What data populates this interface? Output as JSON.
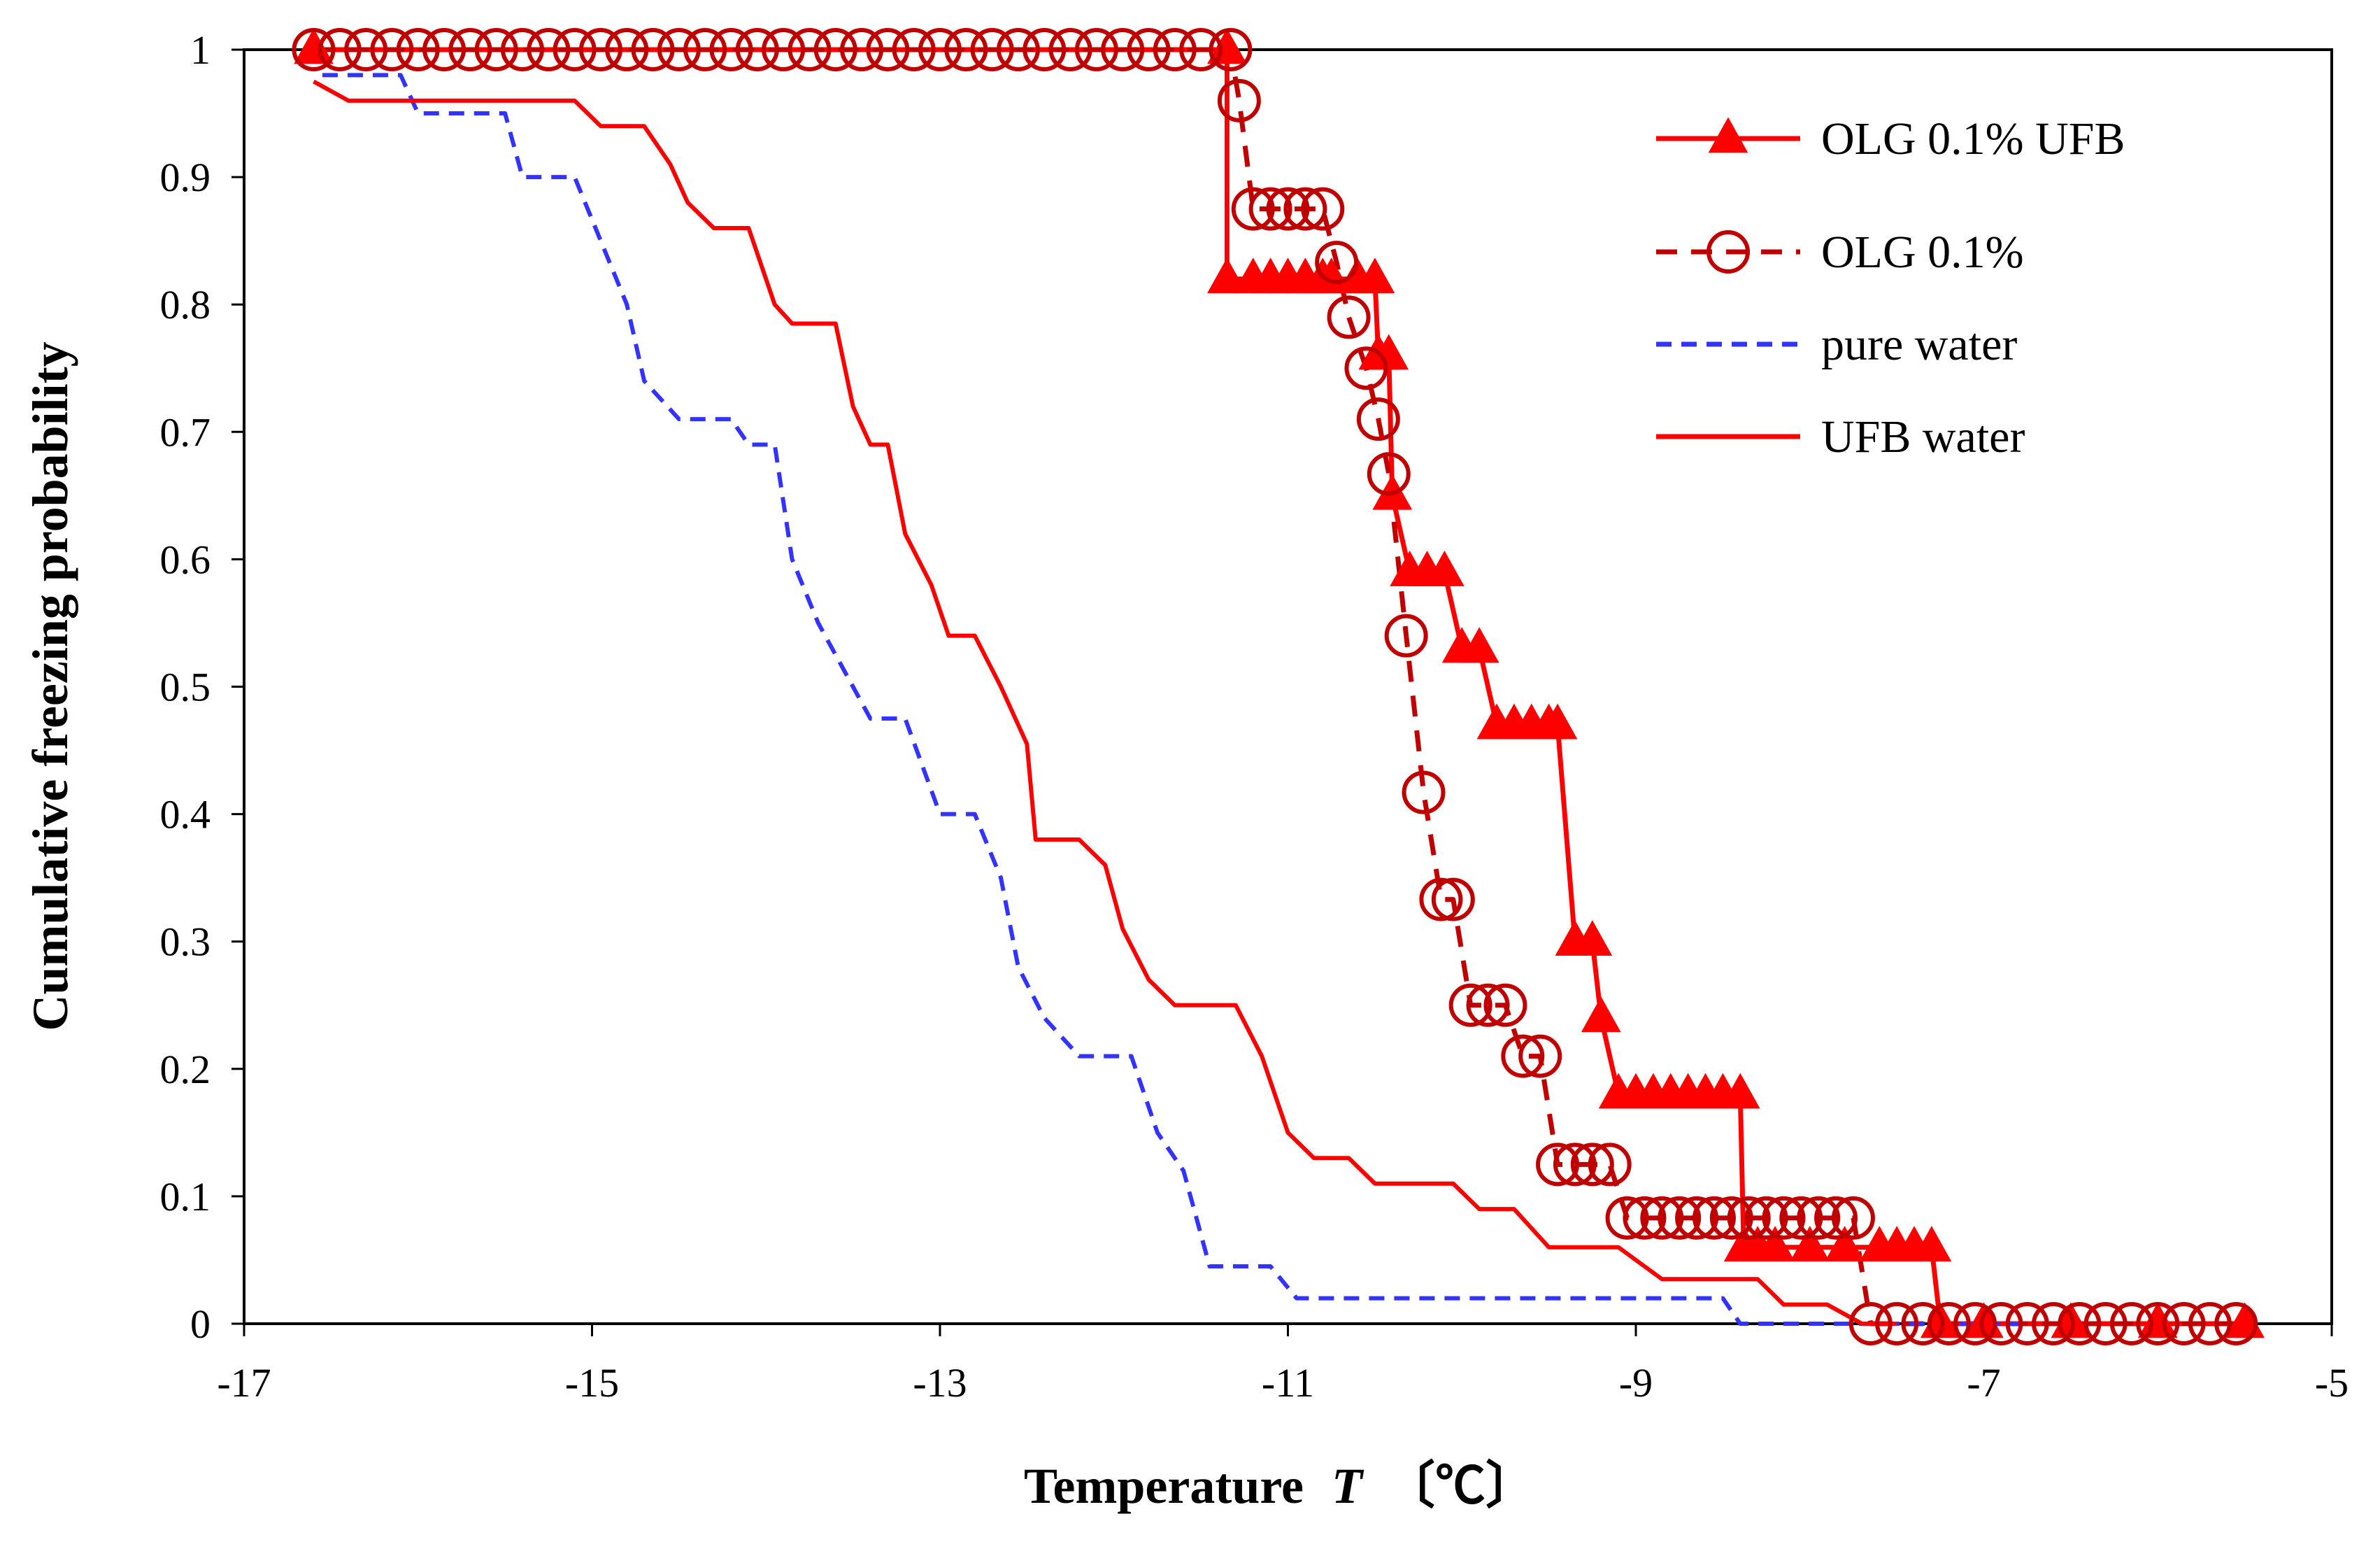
{
  "chart_data": {
    "type": "line",
    "title": "",
    "xlabel_main": "Temperature",
    "xlabel_symbol": "T",
    "xlabel_unit": "〔℃〕",
    "ylabel": "Cumulative freezing probability",
    "xlim": [
      -17,
      -5
    ],
    "ylim": [
      0,
      1
    ],
    "xticks": [
      -17,
      -15,
      -13,
      -11,
      -9,
      -7,
      -5
    ],
    "yticks": [
      0,
      0.1,
      0.2,
      0.3,
      0.4,
      0.5,
      0.6,
      0.7,
      0.8,
      0.9,
      1
    ],
    "xtick_labels": [
      "-17",
      "-15",
      "-13",
      "-11",
      "-9",
      "-7",
      "-5"
    ],
    "ytick_labels": [
      "0",
      "0.1",
      "0.2",
      "0.3",
      "0.4",
      "0.5",
      "0.6",
      "0.7",
      "0.8",
      "0.9",
      "1"
    ],
    "legend_position": "top-right",
    "series": [
      {
        "name": "OLG 0.1% UFB",
        "color": "#ff0000",
        "line": "solid",
        "marker": "triangle",
        "points": [
          [
            -16.6,
            1
          ],
          [
            -11.35,
            1
          ],
          [
            -11.35,
            0.82
          ],
          [
            -11.2,
            0.82
          ],
          [
            -11.1,
            0.82
          ],
          [
            -11.0,
            0.82
          ],
          [
            -10.9,
            0.82
          ],
          [
            -10.8,
            0.82
          ],
          [
            -10.75,
            0.82
          ],
          [
            -10.6,
            0.82
          ],
          [
            -10.5,
            0.82
          ],
          [
            -10.48,
            0.76
          ],
          [
            -10.42,
            0.76
          ],
          [
            -10.4,
            0.65
          ],
          [
            -10.3,
            0.59
          ],
          [
            -10.2,
            0.59
          ],
          [
            -10.1,
            0.59
          ],
          [
            -10.0,
            0.53
          ],
          [
            -9.9,
            0.53
          ],
          [
            -9.8,
            0.47
          ],
          [
            -9.7,
            0.47
          ],
          [
            -9.6,
            0.47
          ],
          [
            -9.5,
            0.47
          ],
          [
            -9.45,
            0.47
          ],
          [
            -9.35,
            0.3
          ],
          [
            -9.25,
            0.3
          ],
          [
            -9.2,
            0.24
          ],
          [
            -9.1,
            0.18
          ],
          [
            -9.0,
            0.18
          ],
          [
            -8.9,
            0.18
          ],
          [
            -8.8,
            0.18
          ],
          [
            -8.7,
            0.18
          ],
          [
            -8.6,
            0.18
          ],
          [
            -8.5,
            0.18
          ],
          [
            -8.4,
            0.18
          ],
          [
            -8.38,
            0.06
          ],
          [
            -8.3,
            0.06
          ],
          [
            -8.2,
            0.06
          ],
          [
            -8.0,
            0.06
          ],
          [
            -7.8,
            0.06
          ],
          [
            -7.6,
            0.06
          ],
          [
            -7.5,
            0.06
          ],
          [
            -7.4,
            0.06
          ],
          [
            -7.3,
            0.06
          ],
          [
            -7.25,
            0.0
          ],
          [
            -7.0,
            0.0
          ],
          [
            -6.5,
            0.0
          ],
          [
            -6.0,
            0.0
          ],
          [
            -5.5,
            0.0
          ]
        ]
      },
      {
        "name": "OLG 0.1%",
        "color": "#c00000",
        "line": "dashed",
        "marker": "circle",
        "points": [
          [
            -16.6,
            1
          ],
          [
            -16.45,
            1
          ],
          [
            -16.3,
            1
          ],
          [
            -16.15,
            1
          ],
          [
            -16.0,
            1
          ],
          [
            -15.85,
            1
          ],
          [
            -15.7,
            1
          ],
          [
            -15.55,
            1
          ],
          [
            -15.4,
            1
          ],
          [
            -15.25,
            1
          ],
          [
            -15.1,
            1
          ],
          [
            -14.95,
            1
          ],
          [
            -14.8,
            1
          ],
          [
            -14.65,
            1
          ],
          [
            -14.5,
            1
          ],
          [
            -14.35,
            1
          ],
          [
            -14.2,
            1
          ],
          [
            -14.05,
            1
          ],
          [
            -13.9,
            1
          ],
          [
            -13.75,
            1
          ],
          [
            -13.6,
            1
          ],
          [
            -13.45,
            1
          ],
          [
            -13.3,
            1
          ],
          [
            -13.15,
            1
          ],
          [
            -13.0,
            1
          ],
          [
            -12.85,
            1
          ],
          [
            -12.7,
            1
          ],
          [
            -12.55,
            1
          ],
          [
            -12.4,
            1
          ],
          [
            -12.25,
            1
          ],
          [
            -12.1,
            1
          ],
          [
            -11.95,
            1
          ],
          [
            -11.8,
            1
          ],
          [
            -11.65,
            1
          ],
          [
            -11.5,
            1
          ],
          [
            -11.33,
            1
          ],
          [
            -11.28,
            0.96
          ],
          [
            -11.2,
            0.875
          ],
          [
            -11.1,
            0.875
          ],
          [
            -11.0,
            0.875
          ],
          [
            -10.9,
            0.875
          ],
          [
            -10.8,
            0.875
          ],
          [
            -10.72,
            0.833
          ],
          [
            -10.65,
            0.79
          ],
          [
            -10.55,
            0.75
          ],
          [
            -10.48,
            0.71
          ],
          [
            -10.42,
            0.667
          ],
          [
            -10.32,
            0.54
          ],
          [
            -10.22,
            0.417
          ],
          [
            -10.12,
            0.333
          ],
          [
            -10.05,
            0.333
          ],
          [
            -9.95,
            0.25
          ],
          [
            -9.85,
            0.25
          ],
          [
            -9.75,
            0.25
          ],
          [
            -9.65,
            0.21
          ],
          [
            -9.55,
            0.21
          ],
          [
            -9.45,
            0.125
          ],
          [
            -9.35,
            0.125
          ],
          [
            -9.25,
            0.125
          ],
          [
            -9.15,
            0.125
          ],
          [
            -9.05,
            0.083
          ],
          [
            -8.95,
            0.083
          ],
          [
            -8.85,
            0.083
          ],
          [
            -8.75,
            0.083
          ],
          [
            -8.65,
            0.083
          ],
          [
            -8.55,
            0.083
          ],
          [
            -8.45,
            0.083
          ],
          [
            -8.35,
            0.083
          ],
          [
            -8.25,
            0.083
          ],
          [
            -8.15,
            0.083
          ],
          [
            -8.05,
            0.083
          ],
          [
            -7.95,
            0.083
          ],
          [
            -7.85,
            0.083
          ],
          [
            -7.75,
            0.083
          ],
          [
            -7.65,
            0.0
          ],
          [
            -7.5,
            0.0
          ],
          [
            -7.35,
            0.0
          ],
          [
            -7.2,
            0.0
          ],
          [
            -7.05,
            0.0
          ],
          [
            -6.9,
            0.0
          ],
          [
            -6.75,
            0.0
          ],
          [
            -6.6,
            0.0
          ],
          [
            -6.45,
            0.0
          ],
          [
            -6.3,
            0.0
          ],
          [
            -6.15,
            0.0
          ],
          [
            -6.0,
            0.0
          ],
          [
            -5.85,
            0.0
          ],
          [
            -5.7,
            0.0
          ],
          [
            -5.55,
            0.0
          ]
        ]
      },
      {
        "name": "pure water",
        "color": "#3333ff",
        "line": "dashed",
        "marker": "none",
        "points": [
          [
            -16.55,
            0.98
          ],
          [
            -16.1,
            0.98
          ],
          [
            -16.0,
            0.95
          ],
          [
            -15.5,
            0.95
          ],
          [
            -15.4,
            0.9
          ],
          [
            -15.1,
            0.9
          ],
          [
            -14.95,
            0.85
          ],
          [
            -14.8,
            0.8
          ],
          [
            -14.7,
            0.74
          ],
          [
            -14.5,
            0.71
          ],
          [
            -14.2,
            0.71
          ],
          [
            -14.1,
            0.69
          ],
          [
            -13.95,
            0.69
          ],
          [
            -13.85,
            0.6
          ],
          [
            -13.7,
            0.55
          ],
          [
            -13.5,
            0.5
          ],
          [
            -13.4,
            0.475
          ],
          [
            -13.2,
            0.475
          ],
          [
            -13.0,
            0.4
          ],
          [
            -12.8,
            0.4
          ],
          [
            -12.65,
            0.35
          ],
          [
            -12.55,
            0.28
          ],
          [
            -12.4,
            0.24
          ],
          [
            -12.2,
            0.21
          ],
          [
            -11.9,
            0.21
          ],
          [
            -11.75,
            0.15
          ],
          [
            -11.6,
            0.12
          ],
          [
            -11.45,
            0.045
          ],
          [
            -11.1,
            0.045
          ],
          [
            -10.95,
            0.02
          ],
          [
            -8.5,
            0.02
          ],
          [
            -8.4,
            0.0
          ],
          [
            -6.8,
            0.0
          ]
        ]
      },
      {
        "name": "UFB water",
        "color": "#ff0000",
        "line": "solid",
        "marker": "none",
        "points": [
          [
            -16.6,
            0.975
          ],
          [
            -16.4,
            0.96
          ],
          [
            -15.1,
            0.96
          ],
          [
            -14.95,
            0.94
          ],
          [
            -14.7,
            0.94
          ],
          [
            -14.55,
            0.91
          ],
          [
            -14.45,
            0.88
          ],
          [
            -14.3,
            0.86
          ],
          [
            -14.1,
            0.86
          ],
          [
            -13.95,
            0.8
          ],
          [
            -13.85,
            0.785
          ],
          [
            -13.6,
            0.785
          ],
          [
            -13.5,
            0.72
          ],
          [
            -13.4,
            0.69
          ],
          [
            -13.3,
            0.69
          ],
          [
            -13.2,
            0.62
          ],
          [
            -13.05,
            0.58
          ],
          [
            -12.95,
            0.54
          ],
          [
            -12.8,
            0.54
          ],
          [
            -12.65,
            0.5
          ],
          [
            -12.5,
            0.455
          ],
          [
            -12.45,
            0.38
          ],
          [
            -12.2,
            0.38
          ],
          [
            -12.05,
            0.36
          ],
          [
            -11.95,
            0.31
          ],
          [
            -11.8,
            0.27
          ],
          [
            -11.65,
            0.25
          ],
          [
            -11.3,
            0.25
          ],
          [
            -11.15,
            0.21
          ],
          [
            -11.0,
            0.15
          ],
          [
            -10.85,
            0.13
          ],
          [
            -10.65,
            0.13
          ],
          [
            -10.5,
            0.11
          ],
          [
            -10.05,
            0.11
          ],
          [
            -9.9,
            0.09
          ],
          [
            -9.7,
            0.09
          ],
          [
            -9.5,
            0.06
          ],
          [
            -9.1,
            0.06
          ],
          [
            -8.85,
            0.035
          ],
          [
            -8.3,
            0.035
          ],
          [
            -8.15,
            0.015
          ],
          [
            -7.9,
            0.015
          ],
          [
            -7.7,
            0.0
          ],
          [
            -7.5,
            0.0
          ]
        ]
      }
    ]
  }
}
